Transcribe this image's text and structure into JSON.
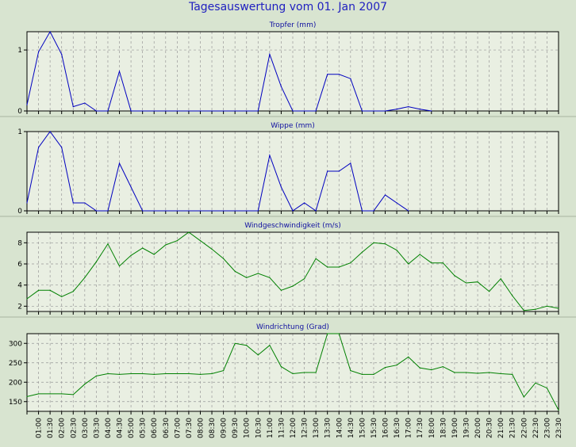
{
  "title": "Tagesauswertung vom 01. Jan 2007",
  "colors": {
    "background": "#D8E4D0",
    "plot_background": "#E9EFE2",
    "title": "#2020C0",
    "rain": "#0000C0",
    "wind": "#008000",
    "grid": "#999999"
  },
  "chart_data": [
    {
      "type": "line",
      "title": "Tropfer (mm)",
      "ylim": [
        0,
        1.3
      ],
      "yticks": [
        0,
        1
      ],
      "ytick_labels": [
        "0",
        "1"
      ],
      "grid": true,
      "series": [
        {
          "points": [
            [
              0.5,
              0.1
            ],
            [
              1.0,
              0.97
            ],
            [
              1.5,
              1.3
            ],
            [
              2.0,
              0.93
            ],
            [
              2.5,
              0.07
            ],
            [
              3.0,
              0.13
            ],
            [
              3.5,
              0
            ],
            [
              4.0,
              0
            ],
            [
              4.5,
              0.65
            ],
            [
              5.0,
              0
            ],
            [
              5.5,
              0
            ],
            [
              6.0,
              0
            ],
            [
              6.5,
              0
            ],
            [
              7.0,
              0
            ],
            [
              7.5,
              0
            ],
            [
              8.0,
              0
            ],
            [
              8.5,
              0
            ],
            [
              9.0,
              0
            ],
            [
              9.5,
              0
            ],
            [
              10.0,
              0
            ],
            [
              10.5,
              0
            ],
            [
              11.0,
              0.93
            ],
            [
              11.5,
              0.4
            ],
            [
              12.0,
              0
            ],
            [
              12.5,
              0
            ],
            [
              13.0,
              0
            ],
            [
              13.5,
              0.6
            ],
            [
              14.0,
              0.6
            ],
            [
              14.5,
              0.53
            ],
            [
              15.0,
              0
            ],
            [
              15.5,
              0
            ],
            [
              16.0,
              0
            ],
            [
              16.5,
              0.03
            ],
            [
              17.0,
              0.07
            ],
            [
              17.5,
              0.03
            ],
            [
              18.0,
              0
            ]
          ]
        }
      ]
    },
    {
      "type": "line",
      "title": "Wippe (mm)",
      "ylim": [
        0,
        1.0
      ],
      "yticks": [
        0,
        1
      ],
      "ytick_labels": [
        "0",
        "1"
      ],
      "grid": true,
      "series": [
        {
          "points": [
            [
              0.5,
              0.1
            ],
            [
              1.0,
              0.8
            ],
            [
              1.5,
              1.0
            ],
            [
              2.0,
              0.8
            ],
            [
              2.5,
              0.1
            ],
            [
              3.0,
              0.1
            ],
            [
              3.5,
              0
            ],
            [
              4.0,
              0
            ],
            [
              4.5,
              0.6
            ],
            [
              5.0,
              0.3
            ],
            [
              5.5,
              0
            ],
            [
              6.0,
              0
            ],
            [
              6.5,
              0
            ],
            [
              7.0,
              0
            ],
            [
              7.5,
              0
            ],
            [
              8.0,
              0
            ],
            [
              8.5,
              0
            ],
            [
              9.0,
              0
            ],
            [
              9.5,
              0
            ],
            [
              10.0,
              0
            ],
            [
              10.5,
              0
            ],
            [
              11.0,
              0.7
            ],
            [
              11.5,
              0.3
            ],
            [
              12.0,
              0
            ],
            [
              12.5,
              0.1
            ],
            [
              13.0,
              0
            ],
            [
              13.5,
              0.5
            ],
            [
              14.0,
              0.5
            ],
            [
              14.5,
              0.6
            ],
            [
              15.0,
              0
            ],
            [
              15.5,
              0
            ],
            [
              16.0,
              0.2
            ],
            [
              16.5,
              0.1
            ],
            [
              17.0,
              0
            ]
          ]
        }
      ]
    },
    {
      "type": "line",
      "title": "Windgeschwindigkeit (m/s)",
      "ylim": [
        1.5,
        9
      ],
      "yticks": [
        2,
        4,
        6,
        8
      ],
      "ytick_labels": [
        "2",
        "4",
        "6",
        "8"
      ],
      "grid": true,
      "series": [
        {
          "points": [
            [
              0.5,
              2.7
            ],
            [
              1.0,
              3.5
            ],
            [
              1.5,
              3.5
            ],
            [
              2.0,
              2.9
            ],
            [
              2.5,
              3.4
            ],
            [
              3.0,
              4.7
            ],
            [
              3.5,
              6.2
            ],
            [
              4.0,
              7.9
            ],
            [
              4.5,
              5.8
            ],
            [
              5.0,
              6.8
            ],
            [
              5.5,
              7.5
            ],
            [
              6.0,
              6.9
            ],
            [
              6.5,
              7.8
            ],
            [
              7.0,
              8.2
            ],
            [
              7.5,
              9.0
            ],
            [
              8.0,
              8.2
            ],
            [
              8.5,
              7.4
            ],
            [
              9.0,
              6.5
            ],
            [
              9.5,
              5.3
            ],
            [
              10.0,
              4.7
            ],
            [
              10.5,
              5.1
            ],
            [
              11.0,
              4.7
            ],
            [
              11.5,
              3.5
            ],
            [
              12.0,
              3.9
            ],
            [
              12.5,
              4.6
            ],
            [
              13.0,
              6.5
            ],
            [
              13.5,
              5.7
            ],
            [
              14.0,
              5.7
            ],
            [
              14.5,
              6.1
            ],
            [
              15.0,
              7.1
            ],
            [
              15.5,
              8.0
            ],
            [
              16.0,
              7.9
            ],
            [
              16.5,
              7.3
            ],
            [
              17.0,
              6.0
            ],
            [
              17.5,
              6.9
            ],
            [
              18.0,
              6.1
            ],
            [
              18.5,
              6.1
            ],
            [
              19.0,
              4.9
            ],
            [
              19.5,
              4.2
            ],
            [
              20.0,
              4.3
            ],
            [
              20.5,
              3.4
            ],
            [
              21.0,
              4.6
            ],
            [
              21.5,
              3.0
            ],
            [
              22.0,
              1.6
            ],
            [
              22.5,
              1.7
            ],
            [
              23.0,
              2.0
            ],
            [
              23.5,
              1.8
            ]
          ]
        }
      ]
    },
    {
      "type": "line",
      "title": "Windrichtung (Grad)",
      "ylim": [
        125,
        325
      ],
      "yticks": [
        150,
        200,
        250,
        300
      ],
      "ytick_labels": [
        "150",
        "200",
        "250",
        "300"
      ],
      "grid": true,
      "xtick_labels": [
        "01:00",
        "01:30",
        "02:00",
        "02:30",
        "03:00",
        "03:30",
        "04:00",
        "04:30",
        "05:00",
        "05:30",
        "06:00",
        "06:30",
        "07:00",
        "07:30",
        "08:00",
        "08:30",
        "09:00",
        "09:30",
        "10:00",
        "10:30",
        "11:00",
        "11:30",
        "12:00",
        "12:30",
        "13:00",
        "13:30",
        "14:00",
        "14:30",
        "15:00",
        "15:30",
        "16:00",
        "16:30",
        "17:00",
        "17:30",
        "18:00",
        "18:30",
        "19:00",
        "19:30",
        "20:00",
        "20:30",
        "21:00",
        "21:30",
        "22:00",
        "22:30",
        "23:00",
        "23:30"
      ],
      "series": [
        {
          "points": [
            [
              0.5,
              163
            ],
            [
              1.0,
              170
            ],
            [
              1.5,
              170
            ],
            [
              2.0,
              170
            ],
            [
              2.5,
              168
            ],
            [
              3.0,
              195
            ],
            [
              3.5,
              216
            ],
            [
              4.0,
              222
            ],
            [
              4.5,
              220
            ],
            [
              5.0,
              222
            ],
            [
              5.5,
              222
            ],
            [
              6.0,
              220
            ],
            [
              6.5,
              222
            ],
            [
              7.0,
              222
            ],
            [
              7.5,
              222
            ],
            [
              8.0,
              220
            ],
            [
              8.5,
              222
            ],
            [
              9.0,
              230
            ],
            [
              9.5,
              300
            ],
            [
              10.0,
              295
            ],
            [
              10.5,
              270
            ],
            [
              11.0,
              295
            ],
            [
              11.5,
              240
            ],
            [
              12.0,
              222
            ],
            [
              12.5,
              225
            ],
            [
              13.0,
              225
            ],
            [
              13.5,
              325
            ],
            [
              14.0,
              325
            ],
            [
              14.5,
              230
            ],
            [
              15.0,
              220
            ],
            [
              15.5,
              220
            ],
            [
              16.0,
              238
            ],
            [
              16.5,
              244
            ],
            [
              17.0,
              265
            ],
            [
              17.5,
              237
            ],
            [
              18.0,
              232
            ],
            [
              18.5,
              240
            ],
            [
              19.0,
              225
            ],
            [
              19.5,
              225
            ],
            [
              20.0,
              223
            ],
            [
              20.5,
              225
            ],
            [
              21.0,
              222
            ],
            [
              21.5,
              220
            ],
            [
              22.0,
              162
            ],
            [
              22.5,
              198
            ],
            [
              23.0,
              185
            ],
            [
              23.5,
              128
            ]
          ]
        }
      ]
    }
  ]
}
